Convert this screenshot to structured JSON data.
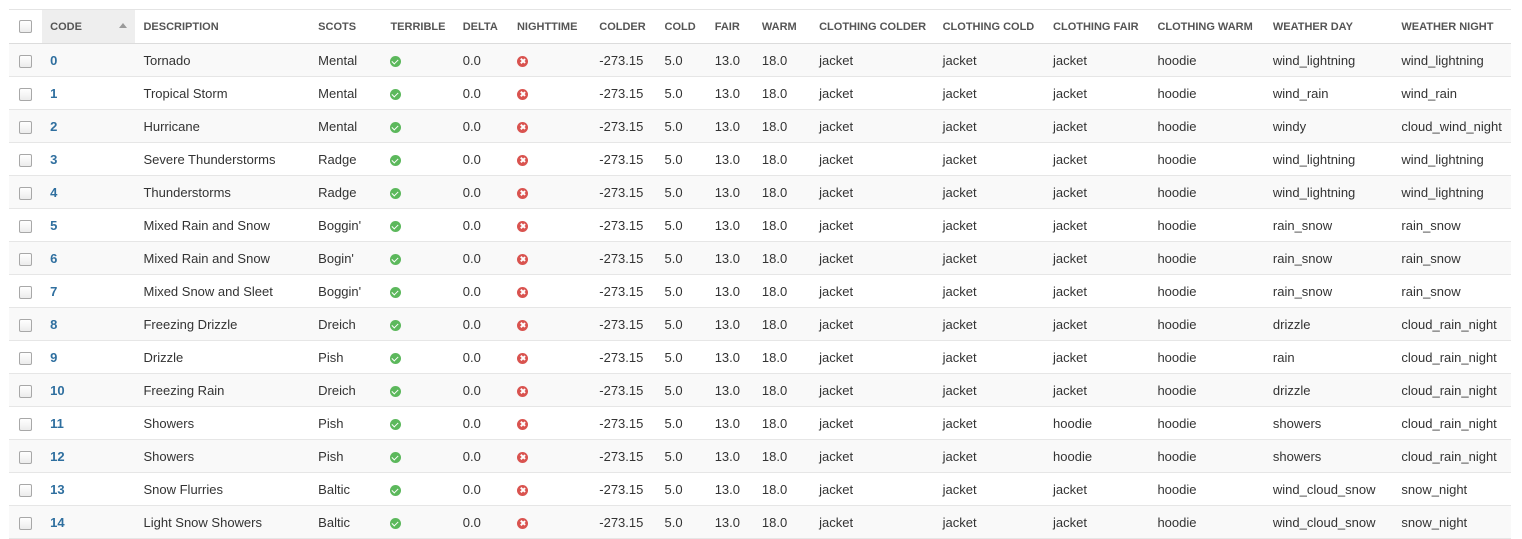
{
  "table": {
    "sort": {
      "column": "CODE",
      "direction": "ascending"
    },
    "columns": [
      {
        "key": "code",
        "label": "CODE"
      },
      {
        "key": "description",
        "label": "DESCRIPTION"
      },
      {
        "key": "scots",
        "label": "SCOTS"
      },
      {
        "key": "terrible",
        "label": "TERRIBLE"
      },
      {
        "key": "delta",
        "label": "DELTA"
      },
      {
        "key": "nighttime",
        "label": "NIGHTTIME"
      },
      {
        "key": "colder",
        "label": "COLDER"
      },
      {
        "key": "cold",
        "label": "COLD"
      },
      {
        "key": "fair",
        "label": "FAIR"
      },
      {
        "key": "warm",
        "label": "WARM"
      },
      {
        "key": "clothing_colder",
        "label": "CLOTHING COLDER"
      },
      {
        "key": "clothing_cold",
        "label": "CLOTHING COLD"
      },
      {
        "key": "clothing_fair",
        "label": "CLOTHING FAIR"
      },
      {
        "key": "clothing_warm",
        "label": "CLOTHING WARM"
      },
      {
        "key": "weather_day",
        "label": "WEATHER DAY"
      },
      {
        "key": "weather_night",
        "label": "WEATHER NIGHT"
      }
    ],
    "icons": {
      "true": "check-circle-icon",
      "false": "times-circle-icon"
    },
    "colors": {
      "true_icon": "#5cb85c",
      "false_icon": "#d9534f",
      "code_link": "#2f6f9f"
    },
    "rows": [
      {
        "code": "0",
        "description": "Tornado",
        "scots": "Mental",
        "terrible": true,
        "delta": "0.0",
        "nighttime": false,
        "colder": "-273.15",
        "cold": "5.0",
        "fair": "13.0",
        "warm": "18.0",
        "clothing_colder": "jacket",
        "clothing_cold": "jacket",
        "clothing_fair": "jacket",
        "clothing_warm": "hoodie",
        "weather_day": "wind_lightning",
        "weather_night": "wind_lightning"
      },
      {
        "code": "1",
        "description": "Tropical Storm",
        "scots": "Mental",
        "terrible": true,
        "delta": "0.0",
        "nighttime": false,
        "colder": "-273.15",
        "cold": "5.0",
        "fair": "13.0",
        "warm": "18.0",
        "clothing_colder": "jacket",
        "clothing_cold": "jacket",
        "clothing_fair": "jacket",
        "clothing_warm": "hoodie",
        "weather_day": "wind_rain",
        "weather_night": "wind_rain"
      },
      {
        "code": "2",
        "description": "Hurricane",
        "scots": "Mental",
        "terrible": true,
        "delta": "0.0",
        "nighttime": false,
        "colder": "-273.15",
        "cold": "5.0",
        "fair": "13.0",
        "warm": "18.0",
        "clothing_colder": "jacket",
        "clothing_cold": "jacket",
        "clothing_fair": "jacket",
        "clothing_warm": "hoodie",
        "weather_day": "windy",
        "weather_night": "cloud_wind_night"
      },
      {
        "code": "3",
        "description": "Severe Thunderstorms",
        "scots": "Radge",
        "terrible": true,
        "delta": "0.0",
        "nighttime": false,
        "colder": "-273.15",
        "cold": "5.0",
        "fair": "13.0",
        "warm": "18.0",
        "clothing_colder": "jacket",
        "clothing_cold": "jacket",
        "clothing_fair": "jacket",
        "clothing_warm": "hoodie",
        "weather_day": "wind_lightning",
        "weather_night": "wind_lightning"
      },
      {
        "code": "4",
        "description": "Thunderstorms",
        "scots": "Radge",
        "terrible": true,
        "delta": "0.0",
        "nighttime": false,
        "colder": "-273.15",
        "cold": "5.0",
        "fair": "13.0",
        "warm": "18.0",
        "clothing_colder": "jacket",
        "clothing_cold": "jacket",
        "clothing_fair": "jacket",
        "clothing_warm": "hoodie",
        "weather_day": "wind_lightning",
        "weather_night": "wind_lightning"
      },
      {
        "code": "5",
        "description": "Mixed Rain and Snow",
        "scots": "Boggin'",
        "terrible": true,
        "delta": "0.0",
        "nighttime": false,
        "colder": "-273.15",
        "cold": "5.0",
        "fair": "13.0",
        "warm": "18.0",
        "clothing_colder": "jacket",
        "clothing_cold": "jacket",
        "clothing_fair": "jacket",
        "clothing_warm": "hoodie",
        "weather_day": "rain_snow",
        "weather_night": "rain_snow"
      },
      {
        "code": "6",
        "description": "Mixed Rain and Snow",
        "scots": "Bogin'",
        "terrible": true,
        "delta": "0.0",
        "nighttime": false,
        "colder": "-273.15",
        "cold": "5.0",
        "fair": "13.0",
        "warm": "18.0",
        "clothing_colder": "jacket",
        "clothing_cold": "jacket",
        "clothing_fair": "jacket",
        "clothing_warm": "hoodie",
        "weather_day": "rain_snow",
        "weather_night": "rain_snow"
      },
      {
        "code": "7",
        "description": "Mixed Snow and Sleet",
        "scots": "Boggin'",
        "terrible": true,
        "delta": "0.0",
        "nighttime": false,
        "colder": "-273.15",
        "cold": "5.0",
        "fair": "13.0",
        "warm": "18.0",
        "clothing_colder": "jacket",
        "clothing_cold": "jacket",
        "clothing_fair": "jacket",
        "clothing_warm": "hoodie",
        "weather_day": "rain_snow",
        "weather_night": "rain_snow"
      },
      {
        "code": "8",
        "description": "Freezing Drizzle",
        "scots": "Dreich",
        "terrible": true,
        "delta": "0.0",
        "nighttime": false,
        "colder": "-273.15",
        "cold": "5.0",
        "fair": "13.0",
        "warm": "18.0",
        "clothing_colder": "jacket",
        "clothing_cold": "jacket",
        "clothing_fair": "jacket",
        "clothing_warm": "hoodie",
        "weather_day": "drizzle",
        "weather_night": "cloud_rain_night"
      },
      {
        "code": "9",
        "description": "Drizzle",
        "scots": "Pish",
        "terrible": true,
        "delta": "0.0",
        "nighttime": false,
        "colder": "-273.15",
        "cold": "5.0",
        "fair": "13.0",
        "warm": "18.0",
        "clothing_colder": "jacket",
        "clothing_cold": "jacket",
        "clothing_fair": "jacket",
        "clothing_warm": "hoodie",
        "weather_day": "rain",
        "weather_night": "cloud_rain_night"
      },
      {
        "code": "10",
        "description": "Freezing Rain",
        "scots": "Dreich",
        "terrible": true,
        "delta": "0.0",
        "nighttime": false,
        "colder": "-273.15",
        "cold": "5.0",
        "fair": "13.0",
        "warm": "18.0",
        "clothing_colder": "jacket",
        "clothing_cold": "jacket",
        "clothing_fair": "jacket",
        "clothing_warm": "hoodie",
        "weather_day": "drizzle",
        "weather_night": "cloud_rain_night"
      },
      {
        "code": "11",
        "description": "Showers",
        "scots": "Pish",
        "terrible": true,
        "delta": "0.0",
        "nighttime": false,
        "colder": "-273.15",
        "cold": "5.0",
        "fair": "13.0",
        "warm": "18.0",
        "clothing_colder": "jacket",
        "clothing_cold": "jacket",
        "clothing_fair": "hoodie",
        "clothing_warm": "hoodie",
        "weather_day": "showers",
        "weather_night": "cloud_rain_night"
      },
      {
        "code": "12",
        "description": "Showers",
        "scots": "Pish",
        "terrible": true,
        "delta": "0.0",
        "nighttime": false,
        "colder": "-273.15",
        "cold": "5.0",
        "fair": "13.0",
        "warm": "18.0",
        "clothing_colder": "jacket",
        "clothing_cold": "jacket",
        "clothing_fair": "hoodie",
        "clothing_warm": "hoodie",
        "weather_day": "showers",
        "weather_night": "cloud_rain_night"
      },
      {
        "code": "13",
        "description": "Snow Flurries",
        "scots": "Baltic",
        "terrible": true,
        "delta": "0.0",
        "nighttime": false,
        "colder": "-273.15",
        "cold": "5.0",
        "fair": "13.0",
        "warm": "18.0",
        "clothing_colder": "jacket",
        "clothing_cold": "jacket",
        "clothing_fair": "jacket",
        "clothing_warm": "hoodie",
        "weather_day": "wind_cloud_snow",
        "weather_night": "snow_night"
      },
      {
        "code": "14",
        "description": "Light Snow Showers",
        "scots": "Baltic",
        "terrible": true,
        "delta": "0.0",
        "nighttime": false,
        "colder": "-273.15",
        "cold": "5.0",
        "fair": "13.0",
        "warm": "18.0",
        "clothing_colder": "jacket",
        "clothing_cold": "jacket",
        "clothing_fair": "jacket",
        "clothing_warm": "hoodie",
        "weather_day": "wind_cloud_snow",
        "weather_night": "snow_night"
      }
    ]
  }
}
